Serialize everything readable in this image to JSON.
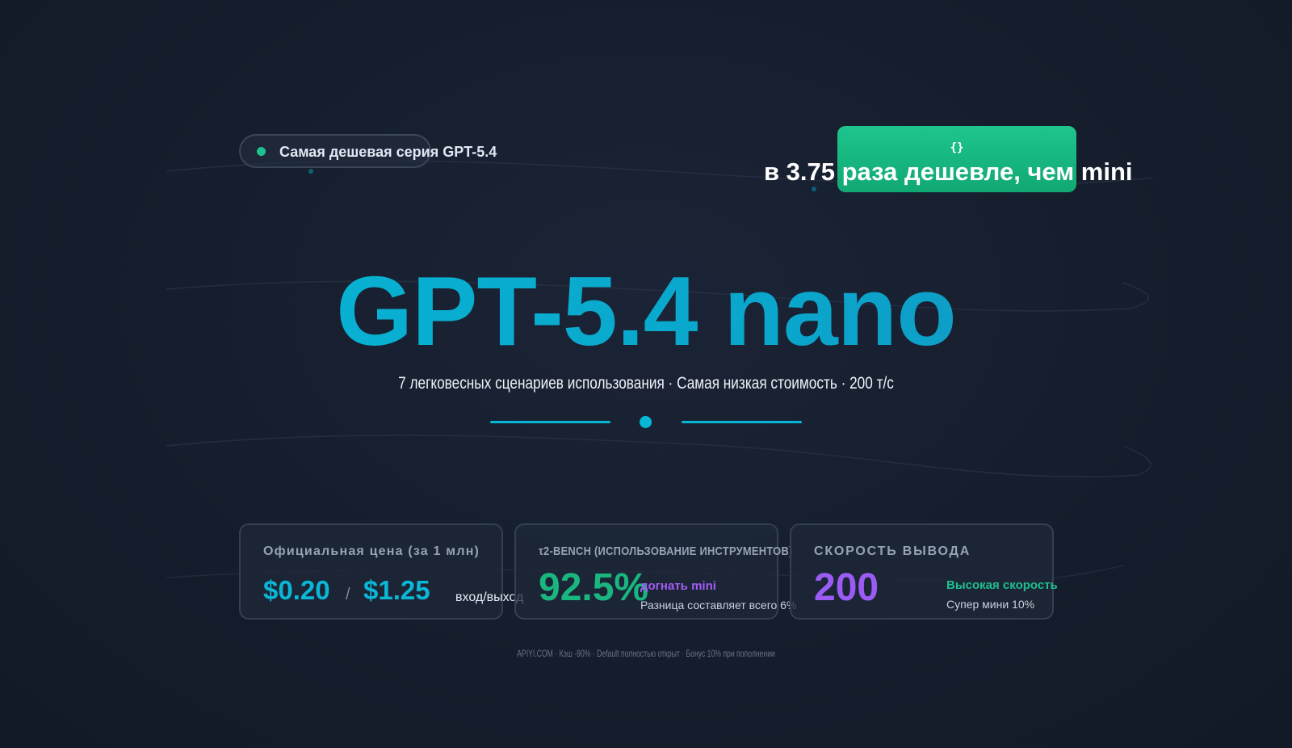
{
  "tag": {
    "text": "Самая дешевая серия GPT-5.4"
  },
  "badge": {
    "icon": "{}",
    "text": "в 3.75 раза дешевле, чем mini"
  },
  "hero": {
    "title": "GPT-5.4 nano",
    "subtitle": "7 легковесных сценариев использования · Самая низкая стоимость · 200 т/с"
  },
  "cards": {
    "price": {
      "label": "Официальная цена (за 1 млн)",
      "input_price": "$0.20",
      "separator": "/",
      "output_price": "$1.25",
      "unit": "вход/выход"
    },
    "bench": {
      "label": "τ2-BENCH (ИСПОЛЬЗОВАНИЕ ИНСТРУМЕНТОВ)",
      "value": "92.5%",
      "note_title": "догнать mini",
      "note_sub": "Разница составляет всего 6%"
    },
    "speed": {
      "label": "СКОРОСТЬ ВЫВОДА",
      "value": "200",
      "note_title": "Высокая скорость",
      "note_sub": "Супер мини 10%"
    }
  },
  "footer": {
    "text": "APIYI.COM · Кэш -90% · Default полностью открыт · Бонус 10% при пополнении"
  },
  "colors": {
    "accent_cyan": "#06b8d6",
    "accent_green": "#1ec08e",
    "accent_purple": "#9b5cf6",
    "background": "#151d2c"
  }
}
